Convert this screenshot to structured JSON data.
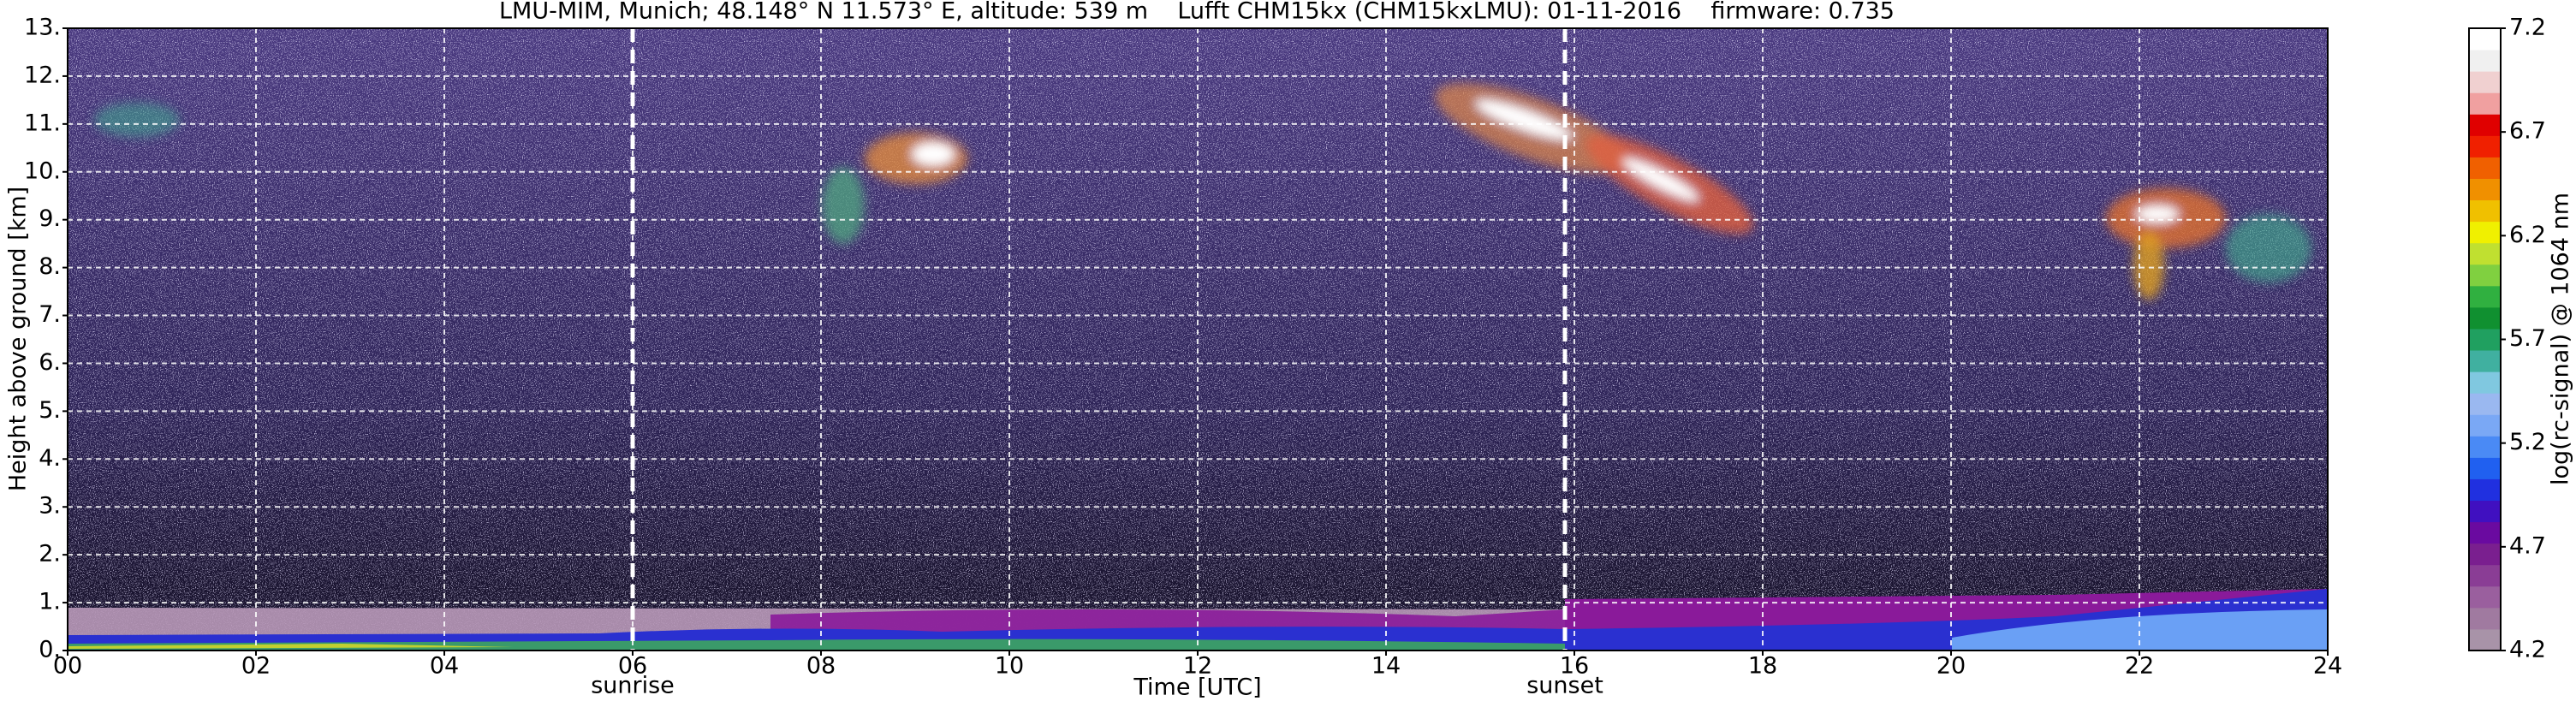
{
  "chart_data": {
    "type": "heatmap",
    "title": "LMU-MIM, Munich; 48.148° N 11.573° E, altitude: 539 m    Lufft CHM15kx (CHM15kxLMU): 01-11-2016    firmware: 0.735",
    "x_label": "Time [UTC]",
    "y_label": "Height above ground [km]",
    "xlim": [
      0,
      24
    ],
    "xticks": [
      {
        "value": 0,
        "label": "00"
      },
      {
        "value": 2,
        "label": "02"
      },
      {
        "value": 4,
        "label": "04"
      },
      {
        "value": 6,
        "label": "06"
      },
      {
        "value": 8,
        "label": "08"
      },
      10,
      12,
      14,
      16,
      18,
      20,
      22,
      24
    ],
    "ylim": [
      0,
      13
    ],
    "yticks": [
      {
        "value": 0,
        "label": "0."
      },
      {
        "value": 1,
        "label": "1."
      },
      {
        "value": 2,
        "label": "2."
      },
      {
        "value": 3,
        "label": "3."
      },
      {
        "value": 4,
        "label": "4."
      },
      {
        "value": 5,
        "label": "5."
      },
      {
        "value": 6,
        "label": "6."
      },
      {
        "value": 7,
        "label": "7."
      },
      {
        "value": 8,
        "label": "8."
      },
      {
        "value": 9,
        "label": "9."
      },
      {
        "value": 10,
        "label": "10."
      },
      {
        "value": 11,
        "label": "11."
      },
      {
        "value": 12,
        "label": "12."
      },
      {
        "value": 13,
        "label": "13."
      }
    ],
    "grid": true,
    "annotations": [
      {
        "x": 6,
        "text": "sunrise"
      },
      {
        "x": 15.9,
        "text": "sunset"
      }
    ],
    "colorbar": {
      "label": "log(rc-signal) @ 1064 nm",
      "lim": [
        4.2,
        7.2
      ],
      "ticks": [
        4.2,
        4.7,
        5.2,
        5.7,
        6.2,
        6.7,
        7.2
      ],
      "colors": [
        "#a893a8",
        "#a07aa0",
        "#9a5f9e",
        "#8a3d95",
        "#7a1f8f",
        "#6a0aa0",
        "#4010c0",
        "#2030e0",
        "#2060f0",
        "#4a8af5",
        "#7aa8f5",
        "#9ab8f0",
        "#80c8e0",
        "#40b0a0",
        "#20a060",
        "#109030",
        "#30b040",
        "#80d040",
        "#c0e030",
        "#f0f000",
        "#f0c000",
        "#f09000",
        "#f06000",
        "#f02000",
        "#e00000",
        "#f0a0a0",
        "#f0d0d0",
        "#f0f0f0",
        "#ffffff"
      ]
    }
  }
}
